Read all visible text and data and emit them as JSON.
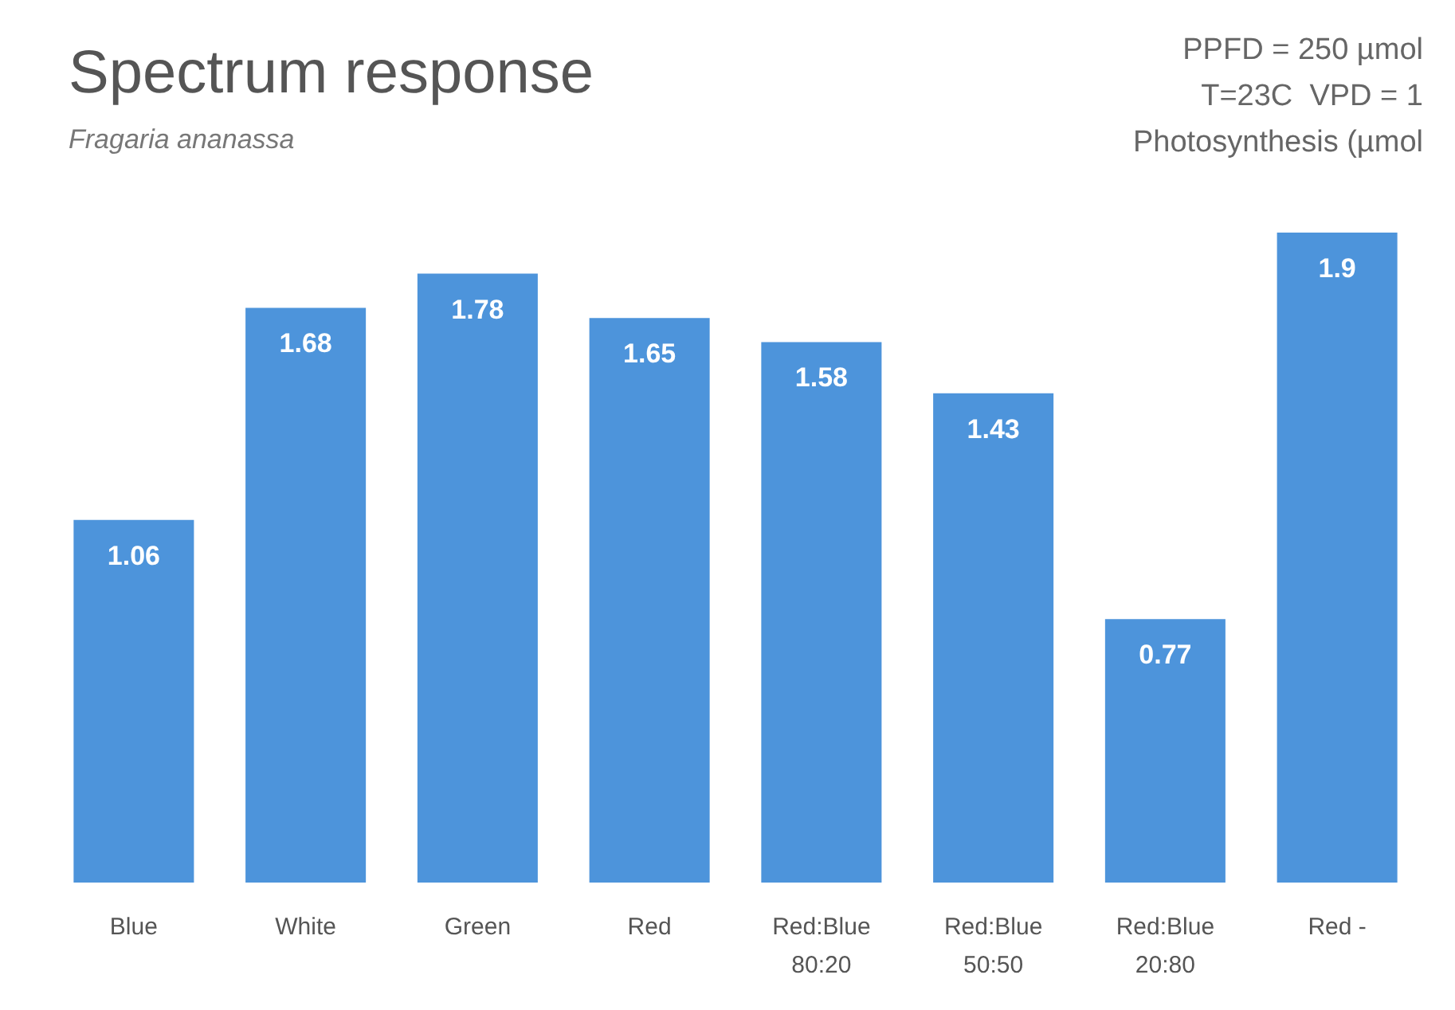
{
  "chart_data": {
    "type": "bar",
    "title": "Spectrum response",
    "subtitle": "Fragaria ananassa",
    "annotations": [
      "PPFD = 250 µmol",
      "T=23C  VPD = 1",
      "Photosynthesis (µmol"
    ],
    "categories": [
      "Blue",
      "White",
      "Green",
      "Red",
      "Red:Blue\n80:20",
      "Red:Blue\n50:50",
      "Red:Blue\n20:80",
      "Red -"
    ],
    "values": [
      1.06,
      1.68,
      1.78,
      1.65,
      1.58,
      1.43,
      0.77,
      1.9
    ],
    "value_labels": [
      "1.06",
      "1.68",
      "1.78",
      "1.65",
      "1.58",
      "1.43",
      "0.77",
      "1.9"
    ],
    "color": "#4d94db",
    "grid": false
  }
}
